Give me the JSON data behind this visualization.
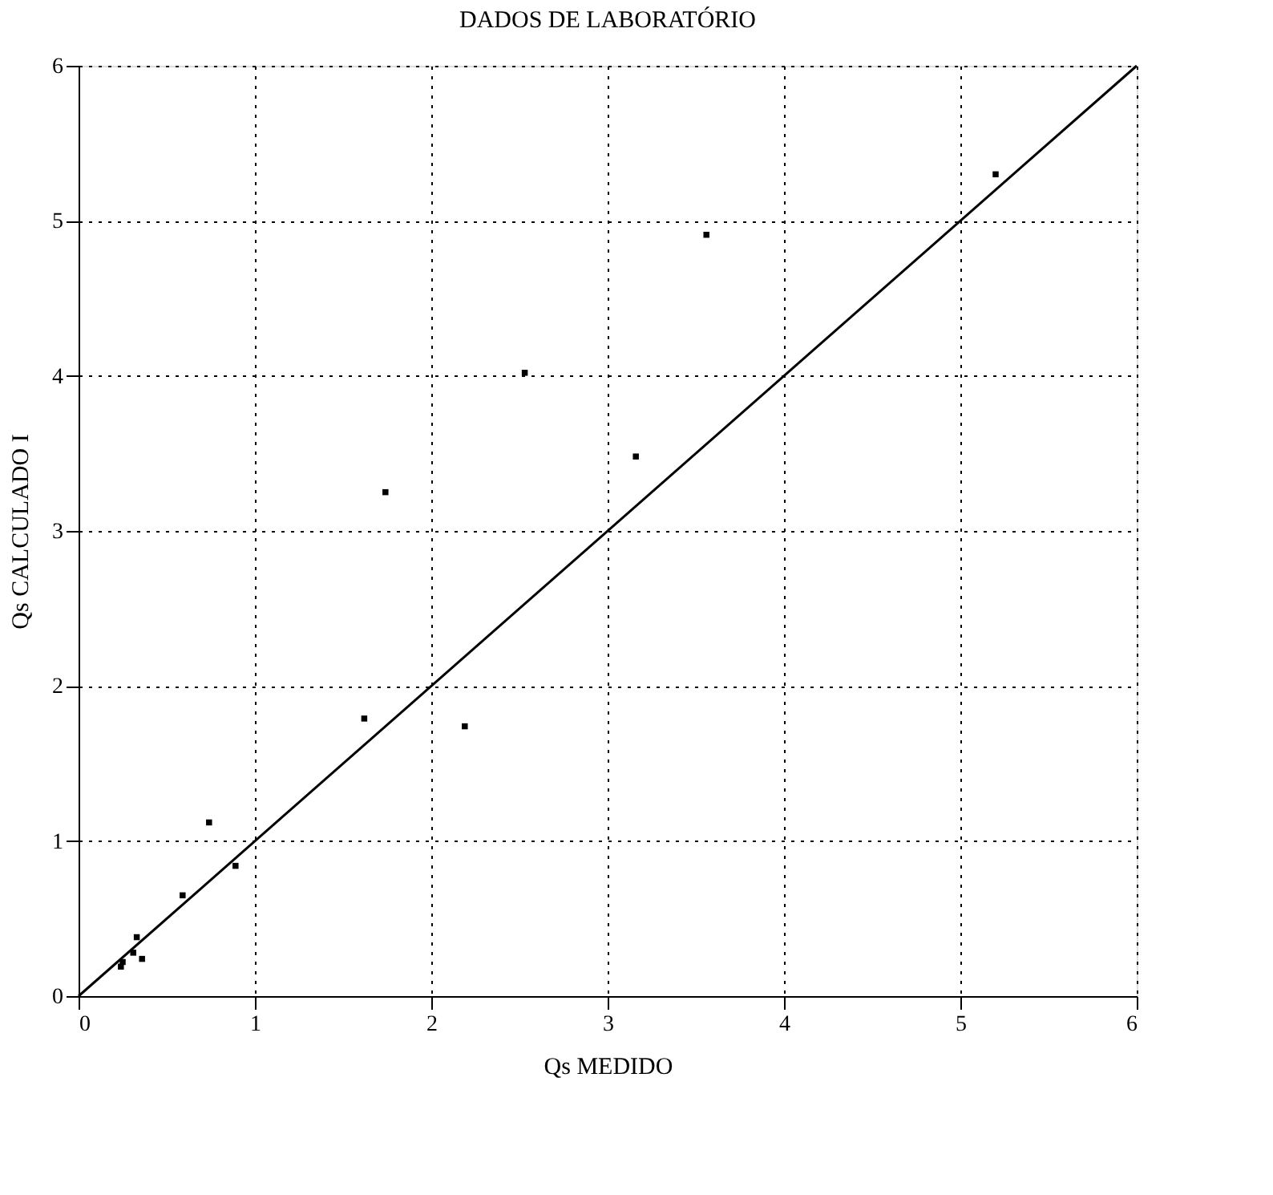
{
  "chart_data": {
    "type": "scatter",
    "title": "DADOS DE LABORATÓRIO",
    "xlabel": "Qs MEDIDO",
    "ylabel": "Qs CALCULADO I",
    "xlim": [
      0,
      6
    ],
    "ylim": [
      0,
      6
    ],
    "xticks": [
      0,
      1,
      2,
      3,
      4,
      5,
      6
    ],
    "yticks": [
      0,
      1,
      2,
      3,
      4,
      5,
      6
    ],
    "grid": true,
    "series": [
      {
        "marker": "square",
        "color": "#000000",
        "x": [
          5.2,
          3.56,
          2.53,
          3.16,
          1.74,
          1.62,
          2.19,
          0.74,
          0.89,
          0.59,
          0.33,
          0.31,
          0.25,
          0.24,
          0.36
        ],
        "values": [
          5.3,
          4.91,
          4.02,
          3.48,
          3.25,
          1.79,
          1.74,
          1.12,
          0.84,
          0.65,
          0.38,
          0.28,
          0.22,
          0.19,
          0.24
        ]
      },
      {
        "type": "line",
        "color": "#000000",
        "line_style": "solid",
        "x": [
          0,
          6
        ],
        "values": [
          0,
          6
        ]
      }
    ]
  }
}
